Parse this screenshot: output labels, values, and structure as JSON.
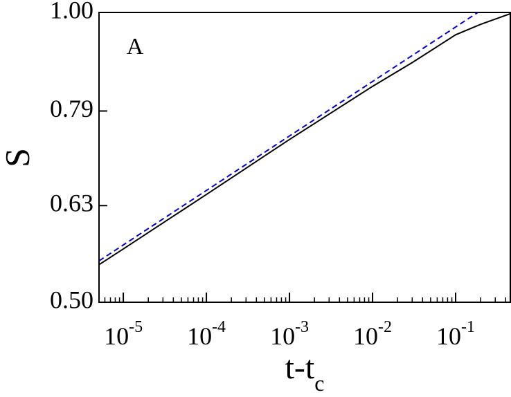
{
  "chart_data": {
    "type": "line",
    "annotation": "A",
    "ylabel": "S",
    "xlabel": "t-t",
    "xlabel_sub": "c",
    "xscale": "log",
    "yscale": "log",
    "xlim": [
      5.1e-06,
      0.455
    ],
    "ylim": [
      0.5,
      1.0
    ],
    "xticks": [
      {
        "value": 1e-05,
        "label": "10",
        "sup": "-5"
      },
      {
        "value": 0.0001,
        "label": "10",
        "sup": "-4"
      },
      {
        "value": 0.001,
        "label": "10",
        "sup": "-3"
      },
      {
        "value": 0.01,
        "label": "10",
        "sup": "-2"
      },
      {
        "value": 0.1,
        "label": "10",
        "sup": "-1"
      }
    ],
    "yticks": [
      {
        "value": 0.5,
        "label": "0.50"
      },
      0.63,
      0.79,
      {
        "value": 1.0,
        "label": "1.00"
      }
    ],
    "minor_ticks": true,
    "grid": false,
    "series": [
      {
        "color": "#000000",
        "dash": "solid",
        "x": [
          5.1e-06,
          1e-05,
          0.0001,
          0.001,
          0.01,
          0.03,
          0.1,
          0.2,
          0.455
        ],
        "values": [
          0.547,
          0.568,
          0.647,
          0.738,
          0.838,
          0.887,
          0.948,
          0.972,
          0.997
        ]
      },
      {
        "color": "#0000cc",
        "dash": "dashed",
        "x": [
          5.1e-06,
          0.185
        ],
        "values": [
          0.552,
          1.0
        ]
      }
    ]
  }
}
